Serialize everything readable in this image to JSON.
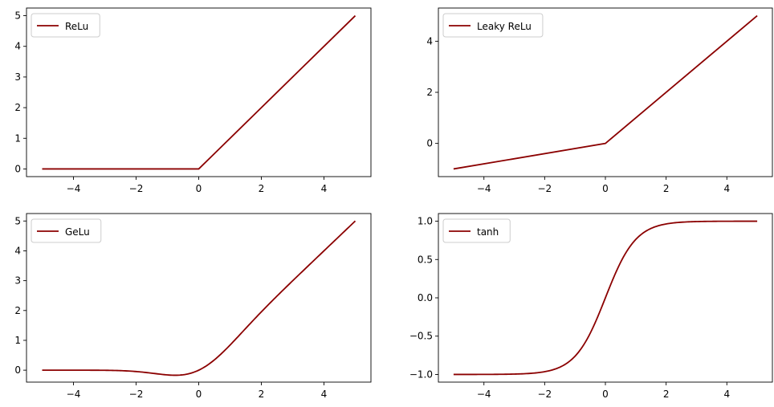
{
  "chart_data": [
    {
      "type": "line",
      "series": [
        {
          "name": "ReLu",
          "x": [
            -5,
            0,
            5
          ],
          "y": [
            0,
            0,
            5
          ]
        }
      ],
      "xlim": [
        -5.5,
        5.5
      ],
      "ylim": [
        -0.25,
        5.25
      ],
      "xticks": [
        -4,
        -2,
        0,
        2,
        4
      ],
      "yticks": [
        0,
        1,
        2,
        3,
        4,
        5
      ],
      "xtick_labels": [
        "−4",
        "−2",
        "0",
        "2",
        "4"
      ],
      "ytick_labels": [
        "0",
        "1",
        "2",
        "3",
        "4",
        "5"
      ],
      "legend": "upper-left",
      "grid": false
    },
    {
      "type": "line",
      "series": [
        {
          "name": "Leaky ReLu",
          "x": [
            -5,
            0,
            5
          ],
          "y": [
            -1,
            0,
            5
          ]
        }
      ],
      "xlim": [
        -5.5,
        5.5
      ],
      "ylim": [
        -1.3,
        5.3
      ],
      "xticks": [
        -4,
        -2,
        0,
        2,
        4
      ],
      "yticks": [
        0,
        2,
        4
      ],
      "xtick_labels": [
        "−4",
        "−2",
        "0",
        "2",
        "4"
      ],
      "ytick_labels": [
        "0",
        "2",
        "4"
      ],
      "legend": "upper-left",
      "grid": false
    },
    {
      "type": "line",
      "series": [
        {
          "name": "GeLu",
          "function": "gelu",
          "x_range": [
            -5,
            5
          ]
        }
      ],
      "xlim": [
        -5.5,
        5.5
      ],
      "ylim": [
        -0.4,
        5.25
      ],
      "xticks": [
        -4,
        -2,
        0,
        2,
        4
      ],
      "yticks": [
        0,
        1,
        2,
        3,
        4,
        5
      ],
      "xtick_labels": [
        "−4",
        "−2",
        "0",
        "2",
        "4"
      ],
      "ytick_labels": [
        "0",
        "1",
        "2",
        "3",
        "4",
        "5"
      ],
      "legend": "upper-left",
      "grid": false
    },
    {
      "type": "line",
      "series": [
        {
          "name": "tanh",
          "function": "tanh",
          "x_range": [
            -5,
            5
          ]
        }
      ],
      "xlim": [
        -5.5,
        5.5
      ],
      "ylim": [
        -1.1,
        1.1
      ],
      "xticks": [
        -4,
        -2,
        0,
        2,
        4
      ],
      "yticks": [
        -1.0,
        -0.5,
        0.0,
        0.5,
        1.0
      ],
      "xtick_labels": [
        "−4",
        "−2",
        "0",
        "2",
        "4"
      ],
      "ytick_labels": [
        "−1.0",
        "−0.5",
        "0.0",
        "0.5",
        "1.0"
      ],
      "legend": "upper-left",
      "grid": false
    }
  ],
  "colors": {
    "line": "#8b0000",
    "axes": "#000000",
    "legend_border": "#cccccc"
  }
}
